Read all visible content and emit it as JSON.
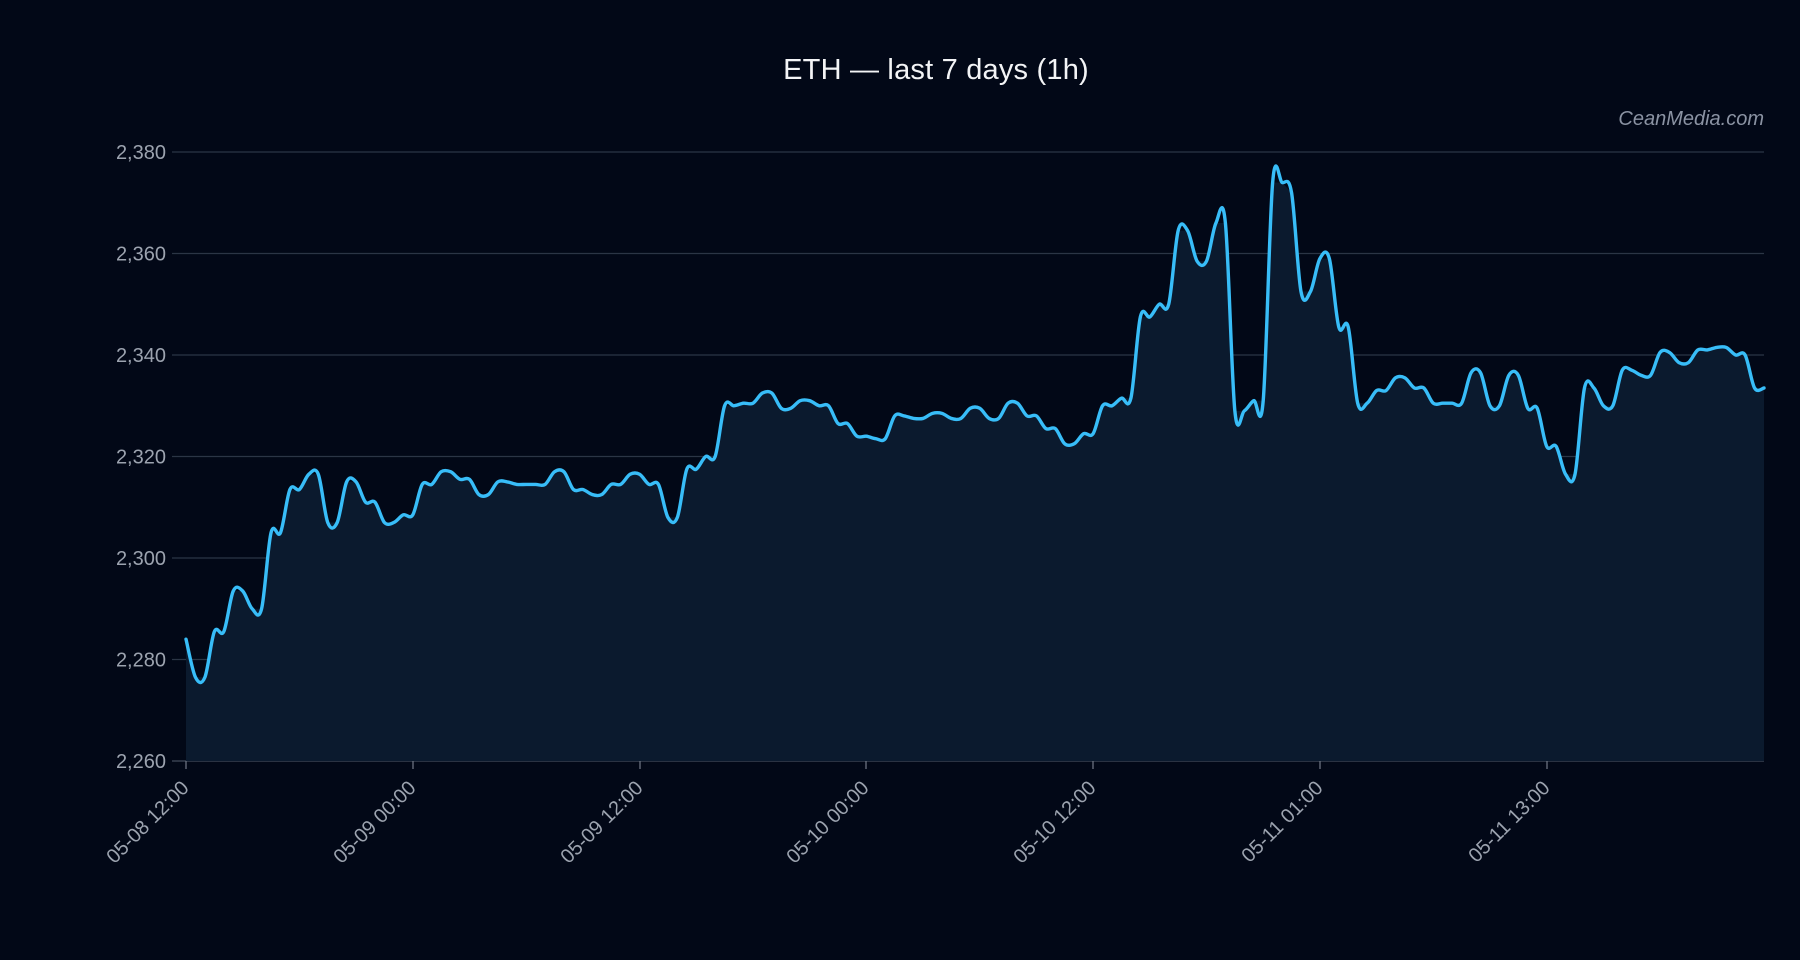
{
  "chart_data": {
    "type": "area",
    "title": "ETH — last 7 days (1h)",
    "watermark": "CeanMedia.com",
    "xlabel": "",
    "ylabel": "",
    "ylim": [
      2260,
      2380
    ],
    "y_ticks": [
      2260,
      2280,
      2300,
      2320,
      2340,
      2360,
      2380
    ],
    "y_tick_labels": [
      "2,260",
      "2,280",
      "2,300",
      "2,320",
      "2,340",
      "2,360",
      "2,380"
    ],
    "x_tick_labels": [
      "05-08 12:00",
      "05-09 00:00",
      "05-09 12:00",
      "05-10 00:00",
      "05-10 12:00",
      "05-11 01:00",
      "05-11 13:00"
    ],
    "grid": "horizontal",
    "line_color": "#38bdf8",
    "fill_color": "#0b1a2e",
    "background": "#020817",
    "series": [
      {
        "values": [
          2284,
          2276.5,
          2276.5,
          2285.5,
          2285.5,
          2293.5,
          2293.5,
          2290,
          2290,
          2305,
          2305,
          2313.5,
          2313.5,
          2316.5,
          2316.5,
          2307,
          2307,
          2315,
          2315,
          2311,
          2311,
          2307,
          2307,
          2308.5,
          2308.5,
          2314.5,
          2314.5,
          2317,
          2317,
          2315.5,
          2315.5,
          2312.5,
          2312.5,
          2315,
          2315,
          2314.5,
          2314.5,
          2314.5,
          2314.5,
          2317,
          2317,
          2313.5,
          2313.5,
          2312.5,
          2312.5,
          2314.5,
          2314.5,
          2316.5,
          2316.5,
          2314.5,
          2314.5,
          2308,
          2308,
          2317.5,
          2317.5,
          2320,
          2320,
          2330,
          2330,
          2330.5,
          2330.5,
          2332.5,
          2332.5,
          2329.5,
          2329.5,
          2331,
          2331,
          2330,
          2330,
          2326.5,
          2326.5,
          2324,
          2324,
          2323.5,
          2323.5,
          2328,
          2328,
          2327.5,
          2327.5,
          2328.5,
          2328.5,
          2327.5,
          2327.5,
          2329.5,
          2329.5,
          2327.5,
          2327.5,
          2330.5,
          2330.5,
          2328,
          2328,
          2325.5,
          2325.5,
          2322.5,
          2322.5,
          2324.5,
          2324.5,
          2330,
          2330,
          2331.5,
          2331.5,
          2347.5,
          2347.5,
          2350,
          2350,
          2364.5,
          2364.5,
          2358.5,
          2358.5,
          2366,
          2366,
          2329,
          2329,
          2331,
          2331,
          2374,
          2374,
          2372,
          2352.5,
          2352.5,
          2359,
          2359,
          2345.5,
          2345.5,
          2330.5,
          2330.5,
          2333,
          2333,
          2335.5,
          2335.5,
          2333.5,
          2333.5,
          2330.5,
          2330.5,
          2330.5,
          2330.5,
          2336.5,
          2336.5,
          2330,
          2330,
          2336,
          2336,
          2329.5,
          2329.5,
          2322,
          2322,
          2316.5,
          2316.5,
          2333.5,
          2333.5,
          2330,
          2330,
          2337,
          2337,
          2336,
          2336,
          2340.5,
          2340.5,
          2338.5,
          2338.5,
          2341,
          2341,
          2341.5,
          2341.5,
          2340,
          2340,
          2333.5,
          2333.5
        ]
      }
    ]
  }
}
